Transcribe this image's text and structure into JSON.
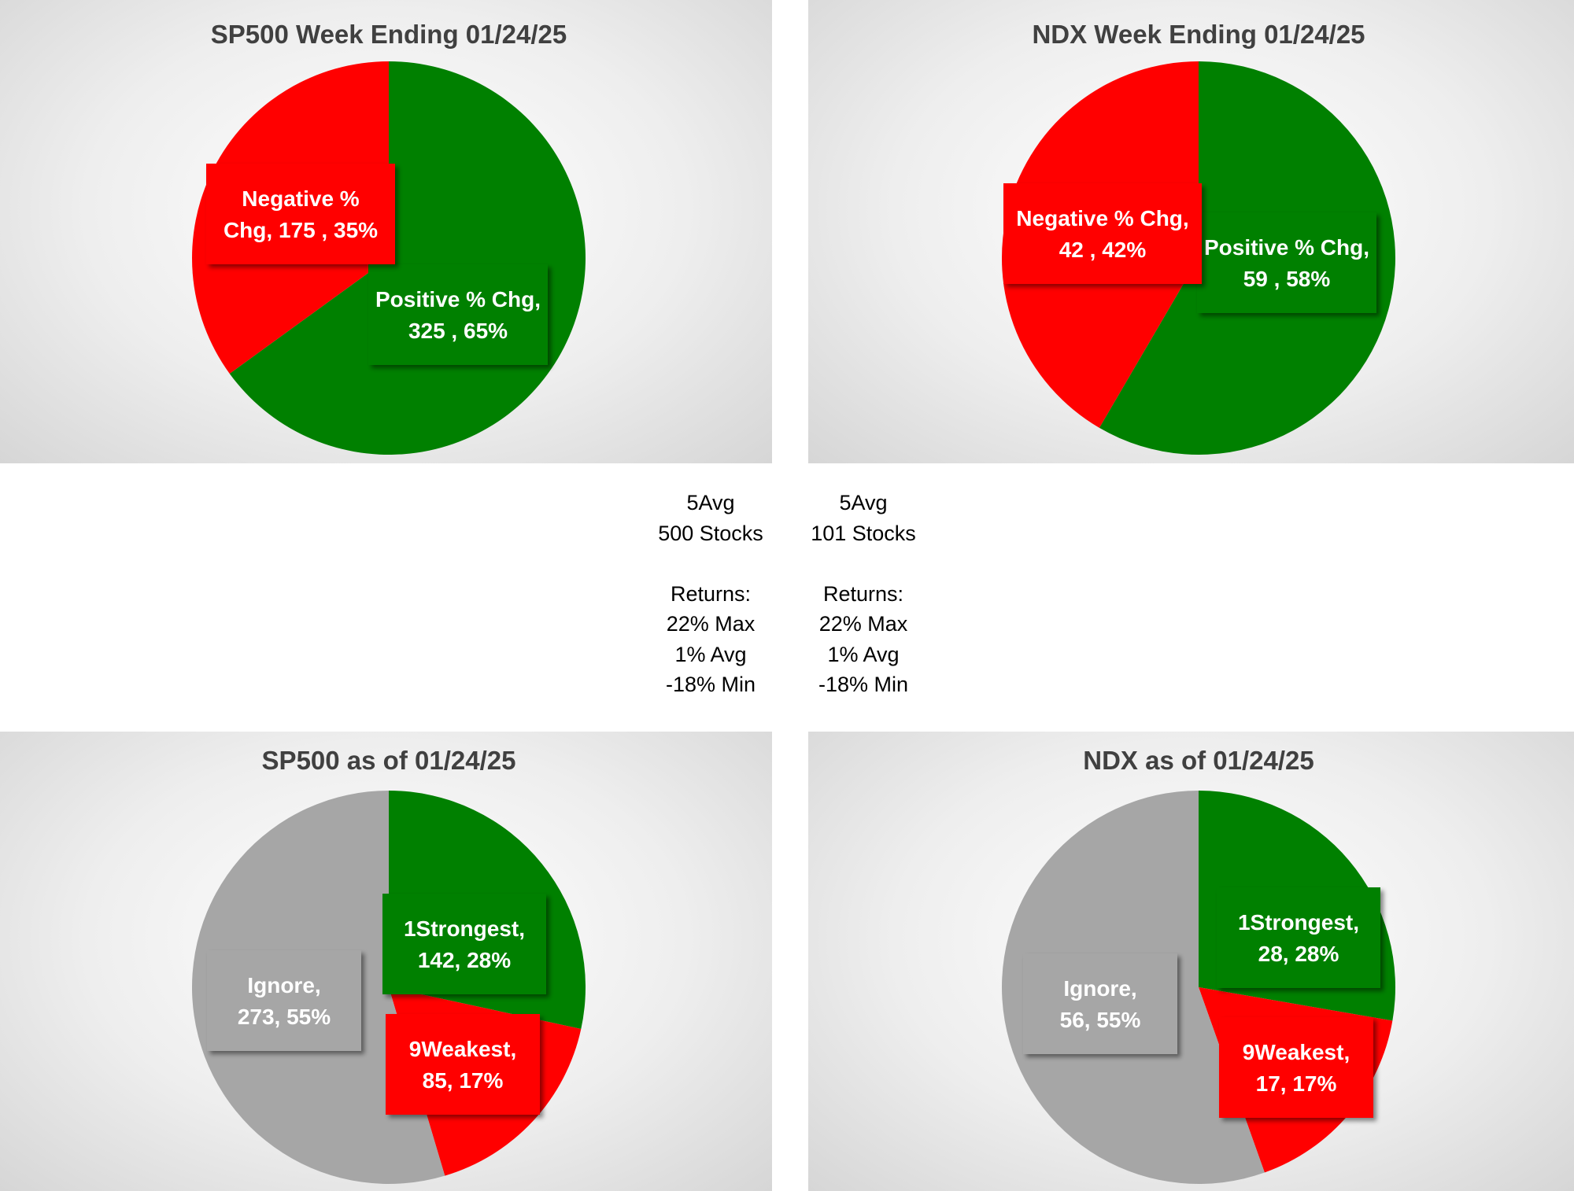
{
  "colors": {
    "positive": "#008000",
    "negative": "#ff0000",
    "ignore": "#a6a6a6",
    "title": "#404040"
  },
  "chart_data": [
    {
      "type": "pie",
      "title": "SP500 Week Ending 01/24/25",
      "slices": [
        {
          "name": "Positive % Chg",
          "value": 325,
          "pct": 65,
          "color": "#008000",
          "label_lines": [
            "Positive % Chg,",
            "325 , 65%"
          ]
        },
        {
          "name": "Negative % Chg",
          "value": 175,
          "pct": 35,
          "color": "#ff0000",
          "label_lines": [
            "Negative %",
            "Chg,  175 , 35%"
          ]
        }
      ]
    },
    {
      "type": "pie",
      "title": "NDX Week Ending 01/24/25",
      "slices": [
        {
          "name": "Positive % Chg",
          "value": 59,
          "pct": 58,
          "color": "#008000",
          "label_lines": [
            "Positive % Chg,",
            "59 , 58%"
          ]
        },
        {
          "name": "Negative % Chg",
          "value": 42,
          "pct": 42,
          "color": "#ff0000",
          "label_lines": [
            "Negative % Chg,",
            "42 , 42%"
          ]
        }
      ]
    },
    {
      "type": "pie",
      "title": "SP500 as of 01/24/25",
      "slices": [
        {
          "name": "1Strongest",
          "value": 142,
          "pct": 28,
          "color": "#008000",
          "label_lines": [
            "1Strongest,",
            "142, 28%"
          ]
        },
        {
          "name": "9Weakest",
          "value": 85,
          "pct": 17,
          "color": "#ff0000",
          "label_lines": [
            "9Weakest,",
            "85, 17%"
          ]
        },
        {
          "name": "Ignore",
          "value": 273,
          "pct": 55,
          "color": "#a6a6a6",
          "label_lines": [
            "Ignore,",
            "273, 55%"
          ]
        }
      ]
    },
    {
      "type": "pie",
      "title": "NDX as of 01/24/25",
      "slices": [
        {
          "name": "1Strongest",
          "value": 28,
          "pct": 28,
          "color": "#008000",
          "label_lines": [
            "1Strongest,",
            "28, 28%"
          ]
        },
        {
          "name": "9Weakest",
          "value": 17,
          "pct": 17,
          "color": "#ff0000",
          "label_lines": [
            "9Weakest,",
            "17, 17%"
          ]
        },
        {
          "name": "Ignore",
          "value": 56,
          "pct": 55,
          "color": "#a6a6a6",
          "label_lines": [
            "Ignore,",
            "56, 55%"
          ]
        }
      ]
    }
  ],
  "stats": {
    "left": [
      "5Avg",
      "500 Stocks",
      "",
      "Returns:",
      "22% Max",
      "1% Avg",
      "-18% Min"
    ],
    "right": [
      "5Avg",
      "101 Stocks",
      "",
      "Returns:",
      "22% Max",
      "1% Avg",
      "-18% Min"
    ]
  }
}
